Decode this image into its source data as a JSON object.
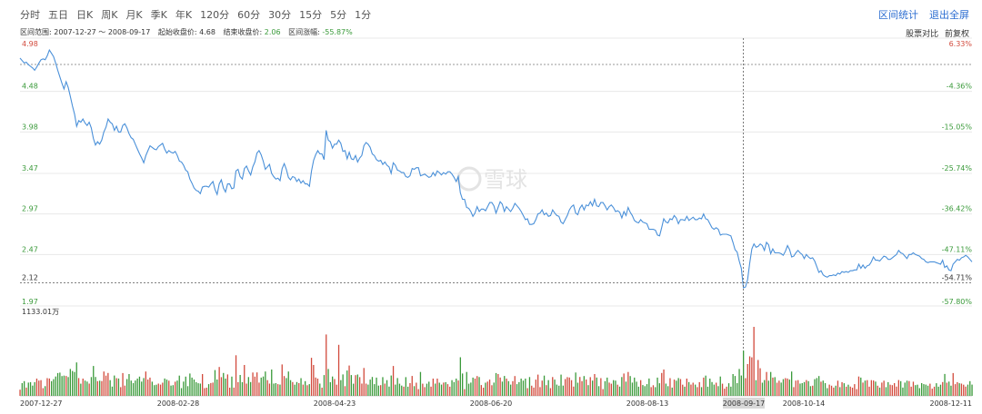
{
  "toolbar": {
    "tabs": [
      "分时",
      "五日",
      "日K",
      "周K",
      "月K",
      "季K",
      "年K",
      "120分",
      "60分",
      "30分",
      "15分",
      "5分",
      "1分"
    ],
    "range_stats_label": "区间统计",
    "fullscreen_label": "退出全屏"
  },
  "info": {
    "range_label": "区间范围:",
    "range_value": "2007-12-27 ～ 2008-09-17",
    "start_label": "起始收盘价:",
    "start_value": "4.68",
    "end_label": "结束收盘价:",
    "end_value": "2.06",
    "chg_label": "区间涨幅:",
    "chg_value": "-55.87%",
    "compare_label": "股票对比",
    "adjust_label": "前复权"
  },
  "watermark": "雪球",
  "colors": {
    "line": "#4a90d9",
    "up": "#d24a3c",
    "down": "#3a9a3a",
    "grid": "#e8e8e8"
  },
  "chart_data": {
    "type": "line",
    "price_ticks": [
      "4.98",
      "4.48",
      "3.98",
      "3.47",
      "2.97",
      "2.47",
      "2.12",
      "1.97"
    ],
    "pct_ticks": [
      "6.33%",
      "-4.36%",
      "-15.05%",
      "-25.74%",
      "-36.42%",
      "-47.11%",
      "-54.71%",
      "-57.80%"
    ],
    "ylim": [
      1.97,
      4.98
    ],
    "x_labels": [
      "2007-12-27",
      "2008-02-28",
      "2008-04-23",
      "2008-06-20",
      "2008-08-13",
      "2008-09-17",
      "2008-10-14",
      "2008-12-11"
    ],
    "highlight_date": "2008-09-17",
    "reference_price": 2.12,
    "volume_max_label": "1133.01万",
    "prices": [
      4.89,
      4.86,
      4.83,
      4.84,
      4.81,
      4.79,
      4.77,
      4.74,
      4.78,
      4.83,
      4.87,
      4.88,
      4.87,
      4.92,
      4.99,
      4.95,
      4.91,
      4.83,
      4.74,
      4.66,
      4.58,
      4.51,
      4.6,
      4.53,
      4.42,
      4.3,
      4.2,
      4.05,
      4.12,
      4.1,
      4.14,
      4.09,
      4.06,
      4.1,
      4.03,
      3.9,
      3.82,
      3.86,
      3.83,
      3.88,
      3.98,
      4.04,
      4.14,
      4.1,
      4.08,
      4.0,
      4.05,
      3.98,
      3.98,
      4.06,
      4.08,
      4.03,
      3.96,
      3.91,
      3.89,
      3.83,
      3.77,
      3.71,
      3.66,
      3.6,
      3.69,
      3.75,
      3.81,
      3.79,
      3.77,
      3.76,
      3.8,
      3.82,
      3.84,
      3.77,
      3.72,
      3.75,
      3.73,
      3.72,
      3.74,
      3.69,
      3.62,
      3.61,
      3.57,
      3.51,
      3.49,
      3.4,
      3.35,
      3.29,
      3.26,
      3.25,
      3.22,
      3.3,
      3.31,
      3.31,
      3.3,
      3.34,
      3.37,
      3.27,
      3.21,
      3.34,
      3.39,
      3.29,
      3.24,
      3.34,
      3.34,
      3.28,
      3.29,
      3.5,
      3.52,
      3.43,
      3.4,
      3.53,
      3.56,
      3.5,
      3.45,
      3.55,
      3.61,
      3.72,
      3.75,
      3.7,
      3.62,
      3.52,
      3.55,
      3.58,
      3.47,
      3.43,
      3.4,
      3.41,
      3.38,
      3.53,
      3.59,
      3.52,
      3.42,
      3.39,
      3.43,
      3.42,
      3.37,
      3.4,
      3.35,
      3.38,
      3.34,
      3.34,
      3.31,
      3.5,
      3.63,
      3.7,
      3.75,
      3.71,
      3.71,
      3.64,
      4.0,
      3.88,
      3.86,
      3.78,
      3.83,
      3.83,
      3.88,
      3.84,
      3.74,
      3.75,
      3.65,
      3.73,
      3.65,
      3.64,
      3.69,
      3.61,
      3.66,
      3.69,
      3.81,
      3.85,
      3.83,
      3.79,
      3.71,
      3.69,
      3.64,
      3.62,
      3.63,
      3.58,
      3.61,
      3.57,
      3.55,
      3.47,
      3.6,
      3.57,
      3.51,
      3.5,
      3.48,
      3.48,
      3.43,
      3.42,
      3.44,
      3.53,
      3.52,
      3.54,
      3.54,
      3.44,
      3.45,
      3.46,
      3.44,
      3.42,
      3.43,
      3.48,
      3.44,
      3.5,
      3.48,
      3.45,
      3.48,
      3.46,
      3.49,
      3.49,
      3.46,
      3.42,
      3.37,
      3.43,
      3.23,
      3.15,
      3.15,
      3.05,
      3.04,
      3.0,
      2.94,
      2.98,
      3.06,
      3.0,
      3.03,
      3.03,
      3.01,
      3.06,
      3.11,
      3.11,
      3.07,
      2.98,
      3.05,
      3.12,
      3.09,
      3.0,
      3.06,
      3.03,
      3.0,
      3.04,
      3.1,
      3.07,
      3.04,
      3.0,
      2.95,
      2.9,
      2.91,
      2.84,
      2.84,
      2.85,
      2.9,
      2.97,
      2.98,
      3.02,
      2.96,
      2.98,
      2.94,
      2.95,
      3.02,
      2.98,
      2.95,
      2.94,
      2.87,
      2.85,
      2.9,
      2.95,
      3.02,
      3.06,
      3.08,
      2.98,
      2.96,
      3.04,
      3.08,
      3.02,
      3.08,
      3.07,
      3.12,
      3.07,
      3.15,
      3.07,
      3.06,
      3.11,
      3.11,
      3.07,
      3.02,
      3.06,
      3.08,
      3.05,
      3.0,
      3.01,
      2.99,
      2.92,
      3.0,
      2.95,
      3.05,
      2.99,
      2.95,
      2.89,
      2.87,
      2.86,
      2.9,
      2.87,
      2.86,
      2.85,
      2.78,
      2.78,
      2.78,
      2.77,
      2.71,
      2.7,
      2.8,
      2.91,
      2.87,
      2.86,
      2.91,
      2.9,
      2.95,
      2.92,
      2.85,
      2.9,
      2.9,
      2.89,
      2.94,
      2.89,
      2.91,
      2.93,
      2.9,
      2.9,
      2.92,
      2.91,
      2.97,
      2.91,
      2.9,
      2.85,
      2.8,
      2.78,
      2.8,
      2.78,
      2.71,
      2.72,
      2.72,
      2.72,
      2.71,
      2.7,
      2.62,
      2.53,
      2.5,
      2.39,
      2.3,
      2.06,
      2.07,
      2.16,
      2.36,
      2.54,
      2.6,
      2.56,
      2.57,
      2.6,
      2.58,
      2.52,
      2.62,
      2.59,
      2.48,
      2.54,
      2.49,
      2.49,
      2.49,
      2.48,
      2.46,
      2.51,
      2.58,
      2.53,
      2.44,
      2.45,
      2.49,
      2.52,
      2.49,
      2.47,
      2.42,
      2.47,
      2.44,
      2.42,
      2.43,
      2.39,
      2.32,
      2.25,
      2.27,
      2.22,
      2.2,
      2.19,
      2.21,
      2.21,
      2.22,
      2.21,
      2.24,
      2.23,
      2.26,
      2.25,
      2.26,
      2.25,
      2.27,
      2.27,
      2.28,
      2.28,
      2.35,
      2.3,
      2.34,
      2.3,
      2.33,
      2.34,
      2.38,
      2.44,
      2.4,
      2.4,
      2.39,
      2.42,
      2.45,
      2.44,
      2.41,
      2.41,
      2.43,
      2.45,
      2.47,
      2.52,
      2.49,
      2.48,
      2.45,
      2.42,
      2.47,
      2.47,
      2.49,
      2.47,
      2.46,
      2.45,
      2.42,
      2.41,
      2.38,
      2.37,
      2.38,
      2.38,
      2.38,
      2.37,
      2.36,
      2.35,
      2.4,
      2.31,
      2.33,
      2.28,
      2.27,
      2.35,
      2.38,
      2.41,
      2.4,
      2.43,
      2.44,
      2.46,
      2.44,
      2.41,
      2.38
    ]
  }
}
